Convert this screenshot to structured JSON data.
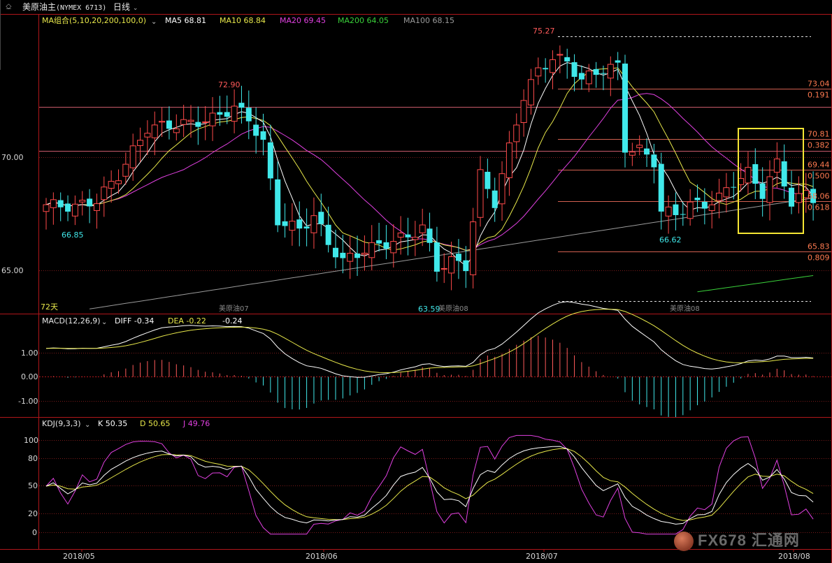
{
  "header": {
    "symbol": "美原油主",
    "symbol_code": "(NYMEX 6713)",
    "period": "日线"
  },
  "ma_legend": {
    "group_label": "MA组合(5,10,20,200,100,0)",
    "items": [
      {
        "label": "MA5 68.81",
        "color": "#ffffff"
      },
      {
        "label": "MA10 68.84",
        "color": "#e8e84a"
      },
      {
        "label": "MA20 69.45",
        "color": "#e040e0"
      },
      {
        "label": "MA200 64.05",
        "color": "#3ad13a"
      },
      {
        "label": "MA100 68.15",
        "color": "#9a9a9a"
      }
    ]
  },
  "macd_legend": {
    "label": "MACD(12,26,9)",
    "diff": "DIFF -0.34",
    "dea": "DEA -0.22",
    "macd": "-0.24"
  },
  "kdj_legend": {
    "label": "KDJ(9,3,3)",
    "k": "K 50.35",
    "d": "D 50.65",
    "j": "J 49.76"
  },
  "price_labels": {
    "high1": "72.90",
    "low1": "66.85",
    "high2": "75.27",
    "low2": "63.59",
    "low3": "66.62"
  },
  "contract_labels": [
    "美原油07",
    "美原油08",
    "美原油08"
  ],
  "days_label": "72天",
  "fib_levels": [
    {
      "price": "73.04",
      "ratio": "0.191"
    },
    {
      "price": "70.81",
      "ratio": "0.382"
    },
    {
      "price": "69.44",
      "ratio": "0.500"
    },
    {
      "price": "68.06",
      "ratio": "0.618"
    },
    {
      "price": "65.83",
      "ratio": "0.809"
    }
  ],
  "watermark": "FX678 汇通网",
  "chart_data": [
    {
      "type": "candlestick",
      "title": "美原油主 (NYMEX 6713) 日线",
      "ylim": [
        63.0,
        76.0
      ],
      "y_ticks": [
        "70.00",
        "65.00"
      ],
      "x_ticks": [
        "2018/05",
        "2018/06",
        "2018/07",
        "2018/08"
      ],
      "horizontal_lines": [
        72.2,
        70.3
      ],
      "fib_lines": [
        73.04,
        70.81,
        69.44,
        68.06,
        65.83
      ]
    },
    {
      "type": "line",
      "title": "MACD(12,26,9)",
      "y_ticks": [
        "1.00",
        "0.00",
        "-1.00"
      ],
      "series": [
        {
          "name": "DIFF",
          "color": "#ffffff"
        },
        {
          "name": "DEA",
          "color": "#e8e84a"
        },
        {
          "name": "MACD",
          "color": "#ff5a5a"
        }
      ]
    },
    {
      "type": "line",
      "title": "KDJ(9,3,3)",
      "y_ticks": [
        "100",
        "80",
        "50",
        "20",
        "0"
      ],
      "series": [
        {
          "name": "K",
          "color": "#ffffff"
        },
        {
          "name": "D",
          "color": "#e8e84a"
        },
        {
          "name": "J",
          "color": "#e040e0"
        }
      ]
    }
  ]
}
